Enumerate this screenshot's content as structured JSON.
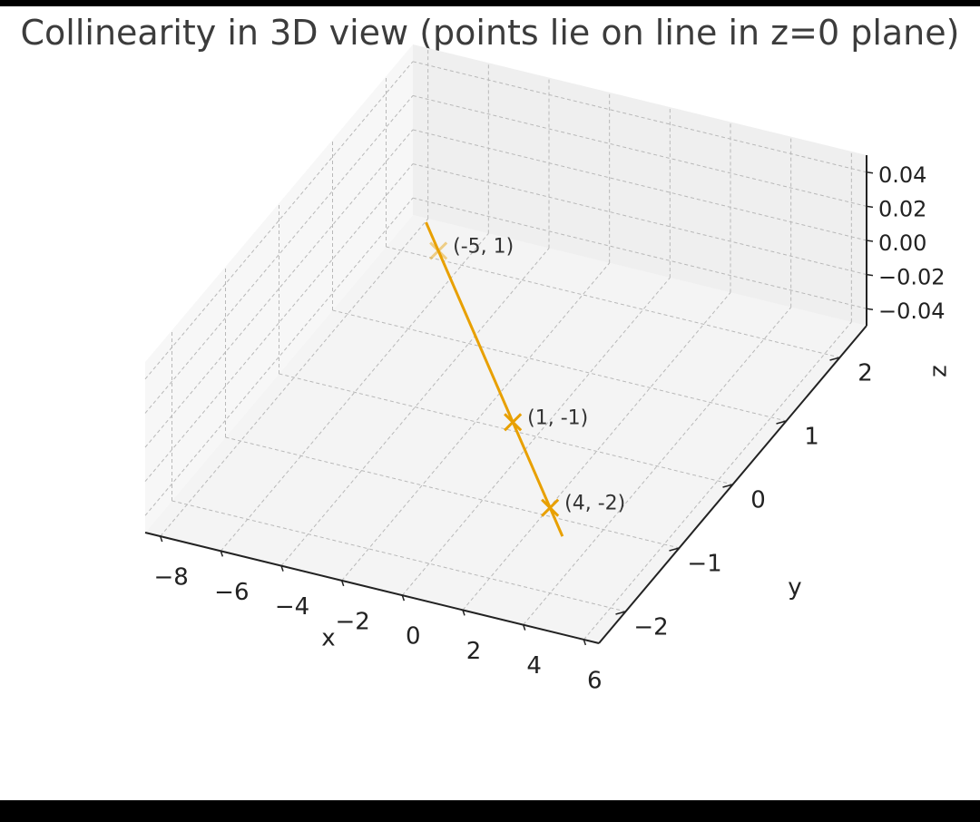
{
  "title": "Collinearity in 3D view (points lie on line in z=0 plane)",
  "chart_data": {
    "type": "line3d",
    "title": "Collinearity in 3D view (points lie on line in z=0 plane)",
    "xlabel": "x",
    "ylabel": "y",
    "zlabel": "z",
    "xlim": [
      -8.5,
      6.5
    ],
    "ylim": [
      -2.5,
      2.5
    ],
    "zlim": [
      -0.05,
      0.05
    ],
    "x_ticks": [
      "−8",
      "−6",
      "−4",
      "−2",
      "0",
      "2",
      "4",
      "6"
    ],
    "y_ticks": [
      "−2",
      "−1",
      "0",
      "1",
      "2"
    ],
    "z_ticks": [
      "0.04",
      "0.02",
      "0.00",
      "−0.02",
      "−0.04"
    ],
    "grid": true,
    "line": {
      "x": [
        -6,
        5
      ],
      "y": [
        1.333,
        -2.333
      ],
      "z": [
        0,
        0
      ]
    },
    "points": [
      {
        "x": -5,
        "y": 1,
        "z": 0,
        "label": "(-5, 1)"
      },
      {
        "x": 1,
        "y": -1,
        "z": 0,
        "label": "(1, -1)"
      },
      {
        "x": 4,
        "y": -2,
        "z": 0,
        "label": "(4, -2)"
      }
    ],
    "colors": {
      "line": "#e8a000",
      "marker": "#e8a000"
    }
  }
}
